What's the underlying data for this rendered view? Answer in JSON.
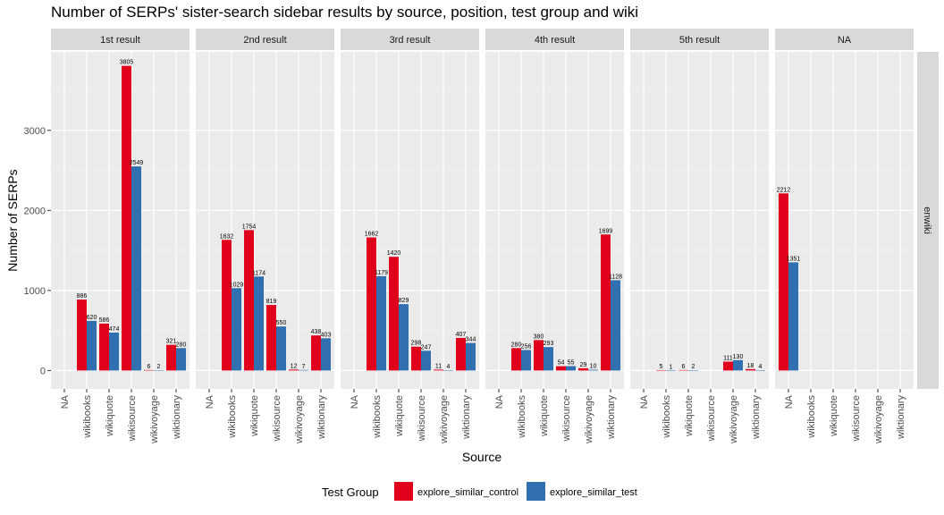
{
  "chart_data": {
    "type": "bar",
    "title": "Number of SERPs' sister-search sidebar results by source, position, test group and wiki",
    "xlabel": "Source",
    "ylabel": "Number of SERPs",
    "ylim": [
      -230,
      3980
    ],
    "yticks": [
      0,
      1000,
      2000,
      3000
    ],
    "ytick_labels": [
      "0",
      "1000",
      "2000",
      "3000"
    ],
    "grid": true,
    "row_facet": "enwiki",
    "categories": [
      "NA",
      "wikibooks",
      "wikiquote",
      "wikisource",
      "wikivoyage",
      "wiktionary"
    ],
    "legend": {
      "title": "Test Group",
      "placement": "bottom",
      "entries": [
        "explore_similar_control",
        "explore_similar_test"
      ]
    },
    "colors": {
      "explore_similar_control": "#e0001b",
      "explore_similar_test": "#3070b0"
    },
    "facets": [
      {
        "label": "1st result",
        "control": [
          null,
          886,
          586,
          3805,
          6,
          321
        ],
        "test": [
          null,
          620,
          474,
          2549,
          2,
          280
        ]
      },
      {
        "label": "2nd result",
        "control": [
          null,
          1632,
          1754,
          819,
          12,
          438
        ],
        "test": [
          null,
          1029,
          1174,
          550,
          7,
          403
        ]
      },
      {
        "label": "3rd result",
        "control": [
          null,
          1662,
          1420,
          298,
          11,
          407
        ],
        "test": [
          null,
          1179,
          829,
          247,
          4,
          344
        ]
      },
      {
        "label": "4th result",
        "control": [
          null,
          280,
          380,
          54,
          29,
          1699
        ],
        "test": [
          null,
          256,
          293,
          55,
          10,
          1128
        ]
      },
      {
        "label": "5th result",
        "control": [
          null,
          5,
          6,
          null,
          111,
          18
        ],
        "test": [
          null,
          1,
          2,
          null,
          130,
          4
        ]
      },
      {
        "label": "NA",
        "control": [
          2212,
          null,
          null,
          null,
          null,
          null
        ],
        "test": [
          1351,
          null,
          null,
          null,
          null,
          null
        ]
      }
    ]
  }
}
